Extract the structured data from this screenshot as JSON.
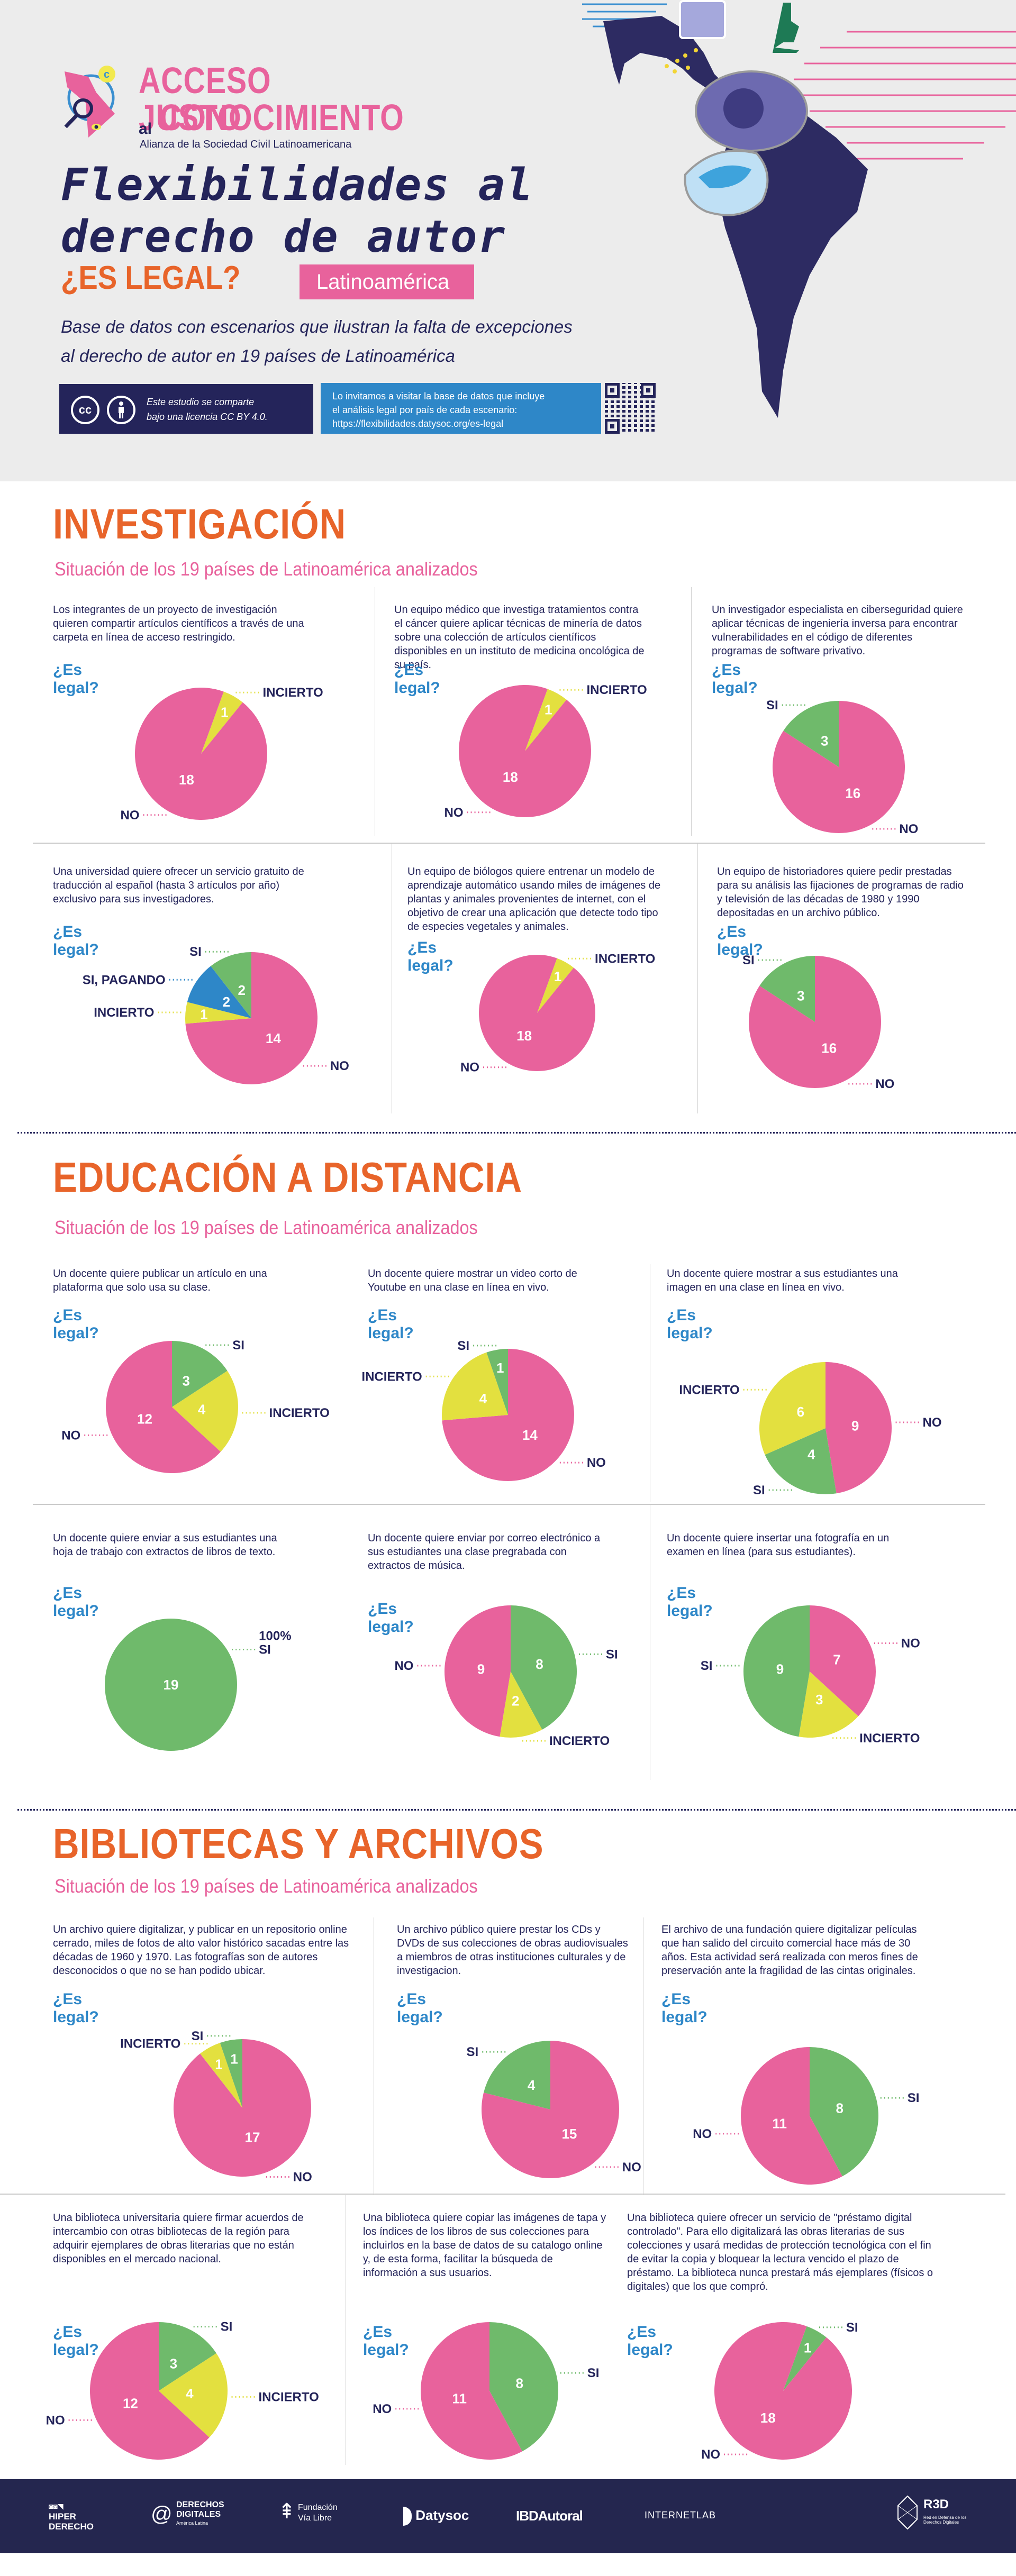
{
  "header": {
    "logo": {
      "line1": "ACCESO JUSTO",
      "al": "al",
      "line2": "CONOCIMIENTO",
      "subtitle": "Alianza de la Sociedad Civil Latinoamericana"
    },
    "title_line1": "Flexibilidades al",
    "title_line2": "derecho de autor",
    "es_legal": "¿ES LEGAL?",
    "region_badge": "Latinoamérica",
    "description_line1": "Base de datos con escenarios que ilustran la falta de excepciones",
    "description_line2": "al derecho de autor en 19 países de Latinoamérica",
    "license": {
      "icon1": "cc",
      "icon2": "by",
      "line1": "Este estudio se comparte",
      "line2": "bajo una licencia CC BY 4.0."
    },
    "invite": {
      "line1": "Lo invitamos a visitar la base de datos que incluye",
      "line2": "el análisis legal por país de cada escenario:",
      "url": "https://flexibilidades.datysoc.org/es-legal"
    }
  },
  "colors": {
    "no": "#e8629c",
    "si": "#6fba6b",
    "incierto": "#e3e03f",
    "si_pagando": "#2e87c8",
    "title_orange": "#e8642a",
    "navy": "#24245a",
    "question_blue": "#2e87c8"
  },
  "question_label": "¿Es legal?",
  "sections": [
    {
      "title": "INVESTIGACIÓN",
      "subtitle": "Situación de los 19 países de Latinoamérica analizados"
    },
    {
      "title": "EDUCACIÓN A DISTANCIA",
      "subtitle": "Situación de los 19 países de Latinoamérica analizados"
    },
    {
      "title": "BIBLIOTECAS Y ARCHIVOS",
      "subtitle": "Situación de los 19 países de Latinoamérica analizados"
    }
  ],
  "chart_data": [
    {
      "type": "pie",
      "section": "INVESTIGACIÓN",
      "title": "¿Es legal?",
      "scenario": "Los integrantes de un proyecto de investigación quieren compartir artículos científicos a través de una carpeta en línea de acceso restringido.",
      "total": 19,
      "slices": [
        {
          "label": "INCIERTO",
          "key": "incierto",
          "value": 1
        },
        {
          "label": "NO",
          "key": "no",
          "value": 18
        }
      ]
    },
    {
      "type": "pie",
      "section": "INVESTIGACIÓN",
      "title": "¿Es legal?",
      "scenario": "Un equipo médico que investiga tratamientos contra el cáncer quiere aplicar técnicas de minería de datos sobre una colección de artículos científicos disponibles en un instituto de medicina oncológica de su país.",
      "total": 19,
      "slices": [
        {
          "label": "INCIERTO",
          "key": "incierto",
          "value": 1
        },
        {
          "label": "NO",
          "key": "no",
          "value": 18
        }
      ]
    },
    {
      "type": "pie",
      "section": "INVESTIGACIÓN",
      "title": "¿Es legal?",
      "scenario": "Un investigador especialista en ciberseguridad quiere aplicar técnicas de ingeniería inversa para encontrar vulnerabilidades en el código de diferentes programas de software privativo.",
      "total": 19,
      "slices": [
        {
          "label": "NO",
          "key": "no",
          "value": 16
        },
        {
          "label": "SI",
          "key": "si",
          "value": 3
        }
      ]
    },
    {
      "type": "pie",
      "section": "INVESTIGACIÓN",
      "title": "¿Es legal?",
      "scenario": "Una universidad quiere ofrecer un servicio gratuito de traducción al español (hasta 3 artículos por año) exclusivo para sus investigadores.",
      "total": 19,
      "slices": [
        {
          "label": "NO",
          "key": "no",
          "value": 14
        },
        {
          "label": "INCIERTO",
          "key": "incierto",
          "value": 1
        },
        {
          "label": "SI, PAGANDO",
          "key": "si_pagando",
          "value": 2
        },
        {
          "label": "SI",
          "key": "si",
          "value": 2
        }
      ]
    },
    {
      "type": "pie",
      "section": "INVESTIGACIÓN",
      "title": "¿Es legal?",
      "scenario": "Un equipo de biólogos quiere entrenar un modelo de aprendizaje automático usando miles de imágenes de plantas y animales provenientes de internet, con el objetivo de crear una aplicación que detecte todo tipo de especies vegetales y animales.",
      "total": 19,
      "slices": [
        {
          "label": "INCIERTO",
          "key": "incierto",
          "value": 1
        },
        {
          "label": "NO",
          "key": "no",
          "value": 18
        }
      ]
    },
    {
      "type": "pie",
      "section": "INVESTIGACIÓN",
      "title": "¿Es legal?",
      "scenario": "Un equipo de historiadores quiere pedir prestadas para su análisis las fijaciones de programas de radio y televisión de las décadas de 1980 y 1990 depositadas en un archivo público.",
      "total": 19,
      "slices": [
        {
          "label": "NO",
          "key": "no",
          "value": 16
        },
        {
          "label": "SI",
          "key": "si",
          "value": 3
        }
      ]
    },
    {
      "type": "pie",
      "section": "EDUCACIÓN A DISTANCIA",
      "title": "¿Es legal?",
      "scenario": "Un docente quiere publicar un artículo en una plataforma que solo usa su clase.",
      "total": 19,
      "slices": [
        {
          "label": "SI",
          "key": "si",
          "value": 3
        },
        {
          "label": "INCIERTO",
          "key": "incierto",
          "value": 4
        },
        {
          "label": "NO",
          "key": "no",
          "value": 12
        }
      ]
    },
    {
      "type": "pie",
      "section": "EDUCACIÓN A DISTANCIA",
      "title": "¿Es legal?",
      "scenario": "Un docente quiere mostrar un video corto de Youtube en una clase en línea en vivo.",
      "total": 19,
      "slices": [
        {
          "label": "NO",
          "key": "no",
          "value": 14
        },
        {
          "label": "INCIERTO",
          "key": "incierto",
          "value": 4
        },
        {
          "label": "SI",
          "key": "si",
          "value": 1
        }
      ]
    },
    {
      "type": "pie",
      "section": "EDUCACIÓN A DISTANCIA",
      "title": "¿Es legal?",
      "scenario": "Un docente quiere mostrar a sus estudiantes una imagen en una clase en línea en vivo.",
      "total": 19,
      "slices": [
        {
          "label": "NO",
          "key": "no",
          "value": 9
        },
        {
          "label": "SI",
          "key": "si",
          "value": 4
        },
        {
          "label": "INCIERTO",
          "key": "incierto",
          "value": 6
        }
      ]
    },
    {
      "type": "pie",
      "section": "EDUCACIÓN A DISTANCIA",
      "title": "¿Es legal?",
      "scenario": "Un docente quiere enviar a sus estudiantes una hoja de trabajo con extractos de libros de texto.",
      "total": 19,
      "annotation": "100%",
      "slices": [
        {
          "label": "SI",
          "key": "si",
          "value": 19
        }
      ]
    },
    {
      "type": "pie",
      "section": "EDUCACIÓN A DISTANCIA",
      "title": "¿Es legal?",
      "scenario": "Un docente quiere enviar por correo electrónico a sus estudiantes una clase pregrabada con extractos de música.",
      "total": 19,
      "slices": [
        {
          "label": "SI",
          "key": "si",
          "value": 8
        },
        {
          "label": "INCIERTO",
          "key": "incierto",
          "value": 2
        },
        {
          "label": "NO",
          "key": "no",
          "value": 9
        }
      ]
    },
    {
      "type": "pie",
      "section": "EDUCACIÓN A DISTANCIA",
      "title": "¿Es legal?",
      "scenario": "Un docente quiere insertar una fotografía en un examen en línea (para sus estudiantes).",
      "total": 19,
      "slices": [
        {
          "label": "NO",
          "key": "no",
          "value": 7
        },
        {
          "label": "INCIERTO",
          "key": "incierto",
          "value": 3
        },
        {
          "label": "SI",
          "key": "si",
          "value": 9
        }
      ]
    },
    {
      "type": "pie",
      "section": "BIBLIOTECAS Y ARCHIVOS",
      "title": "¿Es legal?",
      "scenario": "Un archivo quiere digitalizar, y publicar en un repositorio online cerrado, miles de fotos de alto valor histórico sacadas entre las décadas de 1960 y 1970. Las fotografías son de autores desconocidos o que no se han podido ubicar.",
      "total": 19,
      "slices": [
        {
          "label": "NO",
          "key": "no",
          "value": 17
        },
        {
          "label": "INCIERTO",
          "key": "incierto",
          "value": 1
        },
        {
          "label": "SI",
          "key": "si",
          "value": 1
        }
      ]
    },
    {
      "type": "pie",
      "section": "BIBLIOTECAS Y ARCHIVOS",
      "title": "¿Es legal?",
      "scenario": "Un archivo público quiere prestar los CDs y DVDs de sus colecciones de obras audiovisuales a miembros de otras instituciones culturales y de investigacion.",
      "total": 19,
      "slices": [
        {
          "label": "NO",
          "key": "no",
          "value": 15
        },
        {
          "label": "SI",
          "key": "si",
          "value": 4
        }
      ]
    },
    {
      "type": "pie",
      "section": "BIBLIOTECAS Y ARCHIVOS",
      "title": "¿Es legal?",
      "scenario": "El archivo de una fundación quiere digitalizar películas que han salido del circuito comercial hace más de 30 años. Esta actividad será realizada con meros fines de preservación ante la fragilidad de las cintas originales.",
      "total": 19,
      "slices": [
        {
          "label": "SI",
          "key": "si",
          "value": 8
        },
        {
          "label": "NO",
          "key": "no",
          "value": 11
        }
      ]
    },
    {
      "type": "pie",
      "section": "BIBLIOTECAS Y ARCHIVOS",
      "title": "¿Es legal?",
      "scenario": "Una biblioteca universitaria quiere firmar acuerdos de intercambio con otras bibliotecas de la región para adquirir ejemplares de obras literarias que no están disponibles en el mercado nacional.",
      "total": 19,
      "slices": [
        {
          "label": "SI",
          "key": "si",
          "value": 3
        },
        {
          "label": "INCIERTO",
          "key": "incierto",
          "value": 4
        },
        {
          "label": "NO",
          "key": "no",
          "value": 12
        }
      ]
    },
    {
      "type": "pie",
      "section": "BIBLIOTECAS Y ARCHIVOS",
      "title": "¿Es legal?",
      "scenario": "Una biblioteca quiere copiar las imágenes de tapa y los índices de los libros de sus colecciones para incluirlos en la base de datos de su catalogo online y, de esta forma, facilitar la búsqueda de información a sus usuarios.",
      "total": 19,
      "slices": [
        {
          "label": "SI",
          "key": "si",
          "value": 8
        },
        {
          "label": "NO",
          "key": "no",
          "value": 11
        }
      ]
    },
    {
      "type": "pie",
      "section": "BIBLIOTECAS Y ARCHIVOS",
      "title": "¿Es legal?",
      "scenario": "Una biblioteca quiere ofrecer un servicio de \"préstamo digital controlado\". Para ello digitalizará las obras literarias de sus colecciones y usará medidas de protección tecnológica con el fin de evitar la copia y bloquear la lectura vencido el plazo de préstamo. La biblioteca nunca prestará más ejemplares (físicos o digitales) que los que compró.",
      "total": 19,
      "slices": [
        {
          "label": "SI",
          "key": "si",
          "value": 1
        },
        {
          "label": "NO",
          "key": "no",
          "value": 18
        }
      ]
    }
  ],
  "footer": {
    "logos": [
      "HIPER DERECHO",
      "DERECHOS DIGITALES",
      "Fundación Vía Libre",
      "Datysoc",
      "IBDAutoral",
      "INTERNETLAB",
      "R3D"
    ],
    "derechos_sub": "América Latina",
    "r3d_sub": "Red en Defensa de los Derechos Digitales"
  }
}
